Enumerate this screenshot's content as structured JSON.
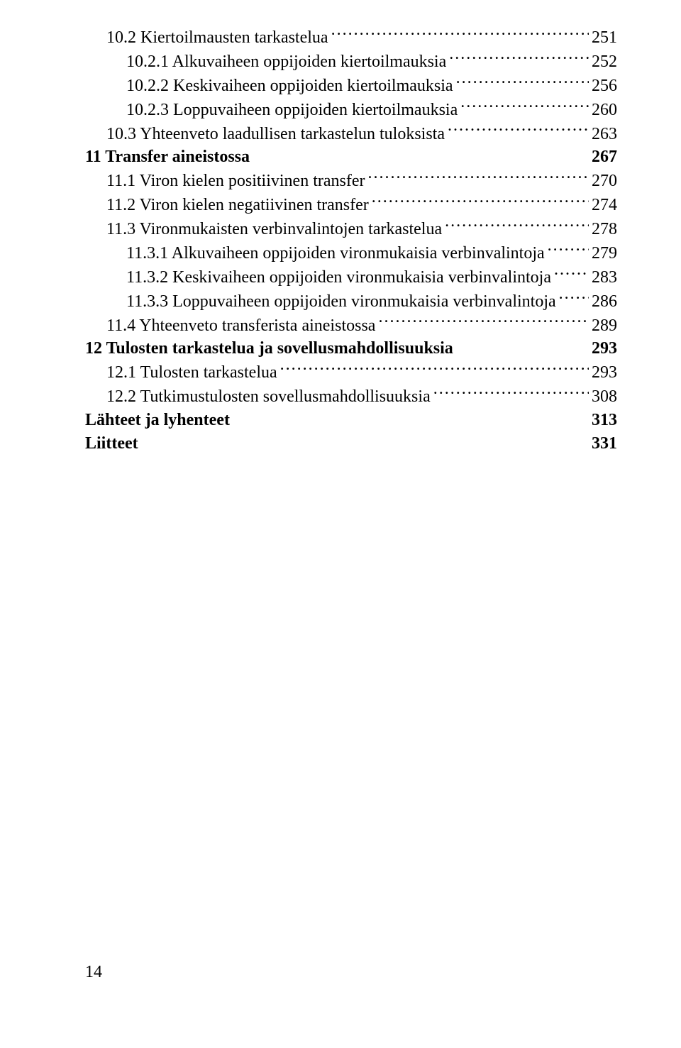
{
  "toc": [
    {
      "type": "sub",
      "indent": 2,
      "label": "10.2 Kiertoilmausten tarkastelua",
      "page": "251"
    },
    {
      "type": "sub",
      "indent": 3,
      "label": "10.2.1 Alkuvaiheen oppijoiden kiertoilmauksia",
      "page": "252"
    },
    {
      "type": "sub",
      "indent": 3,
      "label": "10.2.2 Keskivaiheen oppijoiden kiertoilmauksia",
      "page": "256"
    },
    {
      "type": "sub",
      "indent": 3,
      "label": "10.2.3 Loppuvaiheen oppijoiden kiertoilmauksia",
      "page": "260"
    },
    {
      "type": "sub",
      "indent": 2,
      "label": "10.3 Yhteenveto laadullisen tarkastelun tuloksista",
      "page": "263"
    },
    {
      "type": "chapter",
      "indent": 0,
      "label": "11 Transfer aineistossa",
      "page": "267"
    },
    {
      "type": "sub",
      "indent": 2,
      "label": "11.1 Viron kielen positiivinen transfer",
      "page": "270"
    },
    {
      "type": "sub",
      "indent": 2,
      "label": "11.2 Viron kielen negatiivinen transfer",
      "page": "274"
    },
    {
      "type": "sub",
      "indent": 2,
      "label": "11.3 Vironmukaisten verbinvalintojen tarkastelua",
      "page": "278"
    },
    {
      "type": "sub",
      "indent": 3,
      "label": "11.3.1 Alkuvaiheen oppijoiden vironmukaisia verbinvalintoja",
      "page": "279"
    },
    {
      "type": "sub",
      "indent": 3,
      "label": "11.3.2 Keskivaiheen oppijoiden vironmukaisia verbinvalintoja",
      "page": "283"
    },
    {
      "type": "sub",
      "indent": 3,
      "label": "11.3.3 Loppuvaiheen oppijoiden vironmukaisia verbinvalintoja",
      "page": "286"
    },
    {
      "type": "sub",
      "indent": 2,
      "label": "11.4 Yhteenveto transferista aineistossa",
      "page": "289"
    },
    {
      "type": "chapter",
      "indent": 0,
      "label": "12 Tulosten tarkastelua ja sovellusmahdollisuuksia",
      "page": "293"
    },
    {
      "type": "sub",
      "indent": 2,
      "label": "12.1 Tulosten tarkastelua",
      "page": "293"
    },
    {
      "type": "sub",
      "indent": 2,
      "label": "12.2 Tutkimustulosten sovellusmahdollisuuksia",
      "page": "308"
    },
    {
      "type": "chapter",
      "indent": 0,
      "label": "Lähteet ja lyhenteet",
      "page": "313"
    },
    {
      "type": "chapter",
      "indent": 0,
      "label": "Liitteet",
      "page": "331"
    }
  ],
  "page_number": "14"
}
